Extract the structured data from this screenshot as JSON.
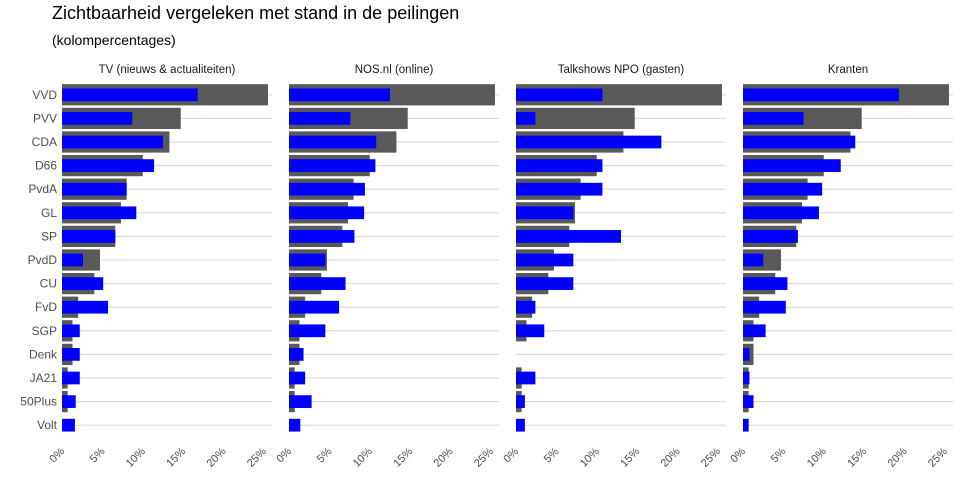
{
  "title": "Zichtbaarheid vergeleken met stand in de peilingen",
  "subtitle": "(kolompercentages)",
  "colors": {
    "poll": "#595959",
    "visibility": "#0000ff",
    "grid": "#d9d9d9"
  },
  "chart_data": {
    "type": "bar",
    "orientation": "horizontal",
    "categories": [
      "VVD",
      "PVV",
      "CDA",
      "D66",
      "PvdA",
      "GL",
      "SP",
      "PvdD",
      "CU",
      "FvD",
      "SGP",
      "Denk",
      "JA21",
      "50Plus",
      "Volt"
    ],
    "x_ticks": [
      "0%",
      "5%",
      "10%",
      "15%",
      "20%",
      "25%"
    ],
    "xlim": [
      0,
      26
    ],
    "grid": true,
    "panels": [
      {
        "label": "TV (nieuws & actualiteiten)",
        "series": [
          {
            "values": [
              25.5,
              14.7,
              13.3,
              10.0,
              8.0,
              7.3,
              6.6,
              4.7,
              4.0,
              2.0,
              1.3,
              1.3,
              0.7,
              0.7,
              0.0
            ]
          },
          {
            "values": [
              16.8,
              8.7,
              12.5,
              11.4,
              8.0,
              9.2,
              6.6,
              2.6,
              5.1,
              5.7,
              2.2,
              2.2,
              2.2,
              1.7,
              1.6
            ]
          }
        ]
      },
      {
        "label": "NOS.nl (online)",
        "series": [
          {
            "values": [
              25.5,
              14.7,
              13.3,
              10.0,
              8.0,
              7.3,
              6.6,
              4.7,
              4.0,
              2.0,
              1.3,
              1.3,
              0.7,
              0.7,
              0.0
            ]
          },
          {
            "values": [
              12.5,
              7.6,
              10.8,
              10.7,
              9.4,
              9.3,
              8.1,
              4.5,
              7.0,
              6.2,
              4.5,
              1.8,
              2.0,
              2.8,
              1.4
            ]
          }
        ]
      },
      {
        "label": "Talkshows NPO (gasten)",
        "series": [
          {
            "values": [
              25.5,
              14.7,
              13.3,
              10.0,
              8.0,
              7.3,
              6.6,
              4.7,
              4.0,
              2.0,
              1.3,
              0.0,
              0.7,
              0.7,
              0.0
            ]
          },
          {
            "values": [
              10.7,
              2.4,
              18.0,
              10.7,
              10.7,
              7.1,
              13.0,
              7.1,
              7.1,
              2.4,
              3.5,
              0.0,
              2.4,
              1.1,
              1.1
            ]
          }
        ]
      },
      {
        "label": "Kranten",
        "series": [
          {
            "values": [
              25.5,
              14.7,
              13.3,
              10.0,
              8.0,
              7.3,
              6.6,
              4.7,
              4.0,
              2.0,
              1.3,
              1.3,
              0.7,
              0.7,
              0.0
            ]
          },
          {
            "values": [
              19.3,
              7.5,
              13.9,
              12.1,
              9.8,
              9.4,
              6.8,
              2.5,
              5.5,
              5.3,
              2.8,
              0.8,
              0.8,
              1.3,
              0.7
            ]
          }
        ]
      }
    ]
  }
}
